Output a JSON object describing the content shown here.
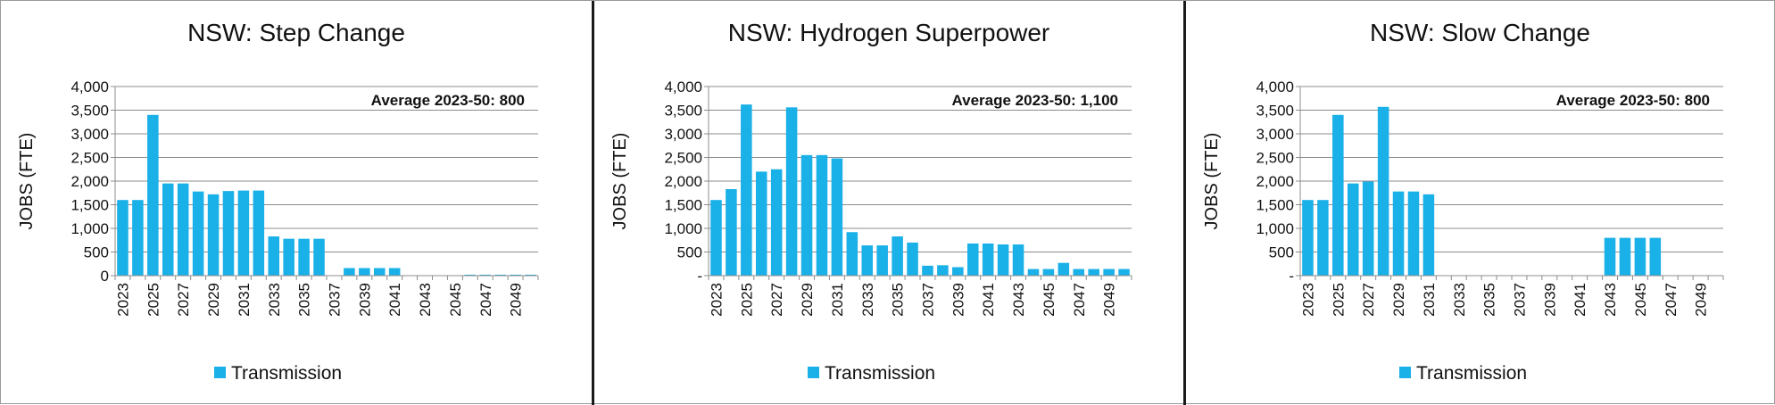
{
  "colors": {
    "bar": "#1ab0e8",
    "grid": "#8c8c8c",
    "axis": "#8c8c8c",
    "text": "#111111",
    "divider": "#1a1a1a"
  },
  "chart_data": [
    {
      "type": "bar",
      "title": "NSW: Step Change",
      "ylabel": "JOBS (FTE)",
      "xlabel": "",
      "ylim": [
        0,
        4000
      ],
      "yticks": [
        "-",
        "500",
        "1,000",
        "1,500",
        "2,000",
        "2,500",
        "3,000",
        "3,500",
        "4,000"
      ],
      "ytick_zero_label": "0",
      "categories": [
        2023,
        2024,
        2025,
        2026,
        2027,
        2028,
        2029,
        2030,
        2031,
        2032,
        2033,
        2034,
        2035,
        2036,
        2037,
        2038,
        2039,
        2040,
        2041,
        2042,
        2043,
        2044,
        2045,
        2046,
        2047,
        2048,
        2049,
        2050
      ],
      "xtick_labels": [
        "2023",
        "2025",
        "2027",
        "2029",
        "2031",
        "2033",
        "2035",
        "2037",
        "2039",
        "2041",
        "2043",
        "2045",
        "2047",
        "2049"
      ],
      "series": [
        {
          "name": "Transmission",
          "values": [
            1600,
            1600,
            3400,
            1950,
            1950,
            1780,
            1720,
            1790,
            1800,
            1800,
            830,
            780,
            780,
            780,
            0,
            160,
            160,
            160,
            160,
            0,
            0,
            0,
            0,
            20,
            20,
            20,
            20,
            20
          ]
        }
      ],
      "annotation": "Average 2023-50: 800",
      "legend": "bottom"
    },
    {
      "type": "bar",
      "title": "NSW: Hydrogen Superpower",
      "ylabel": "JOBS (FTE)",
      "xlabel": "",
      "ylim": [
        0,
        4000
      ],
      "yticks": [
        "-",
        "500",
        "1,000",
        "1,500",
        "2,000",
        "2,500",
        "3,000",
        "3,500",
        "4,000"
      ],
      "ytick_zero_label": "-",
      "categories": [
        2023,
        2024,
        2025,
        2026,
        2027,
        2028,
        2029,
        2030,
        2031,
        2032,
        2033,
        2034,
        2035,
        2036,
        2037,
        2038,
        2039,
        2040,
        2041,
        2042,
        2043,
        2044,
        2045,
        2046,
        2047,
        2048,
        2049,
        2050
      ],
      "xtick_labels": [
        "2023",
        "2025",
        "2027",
        "2029",
        "2031",
        "2033",
        "2035",
        "2037",
        "2039",
        "2041",
        "2043",
        "2045",
        "2047",
        "2049"
      ],
      "series": [
        {
          "name": "Transmission",
          "values": [
            1600,
            1830,
            3620,
            2200,
            2250,
            3560,
            2550,
            2550,
            2480,
            920,
            640,
            640,
            830,
            700,
            210,
            220,
            180,
            680,
            680,
            660,
            660,
            140,
            140,
            270,
            140,
            140,
            140,
            140
          ]
        }
      ],
      "annotation": "Average 2023-50: 1,100",
      "legend": "bottom"
    },
    {
      "type": "bar",
      "title": "NSW: Slow Change",
      "ylabel": "JOBS (FTE)",
      "xlabel": "",
      "ylim": [
        0,
        4000
      ],
      "yticks": [
        "-",
        "500",
        "1,000",
        "1,500",
        "2,000",
        "2,500",
        "3,000",
        "3,500",
        "4,000"
      ],
      "ytick_zero_label": "-",
      "categories": [
        2023,
        2024,
        2025,
        2026,
        2027,
        2028,
        2029,
        2030,
        2031,
        2032,
        2033,
        2034,
        2035,
        2036,
        2037,
        2038,
        2039,
        2040,
        2041,
        2042,
        2043,
        2044,
        2045,
        2046,
        2047,
        2048,
        2049,
        2050
      ],
      "xtick_labels": [
        "2023",
        "2025",
        "2027",
        "2029",
        "2031",
        "2033",
        "2035",
        "2037",
        "2039",
        "2041",
        "2043",
        "2045",
        "2047",
        "2049"
      ],
      "series": [
        {
          "name": "Transmission",
          "values": [
            1600,
            1600,
            3400,
            1950,
            1990,
            3570,
            1780,
            1780,
            1720,
            0,
            0,
            0,
            0,
            0,
            0,
            0,
            0,
            0,
            0,
            0,
            800,
            800,
            800,
            800,
            0,
            0,
            0,
            0
          ]
        }
      ],
      "annotation": "Average 2023-50: 800",
      "legend": "bottom"
    }
  ]
}
